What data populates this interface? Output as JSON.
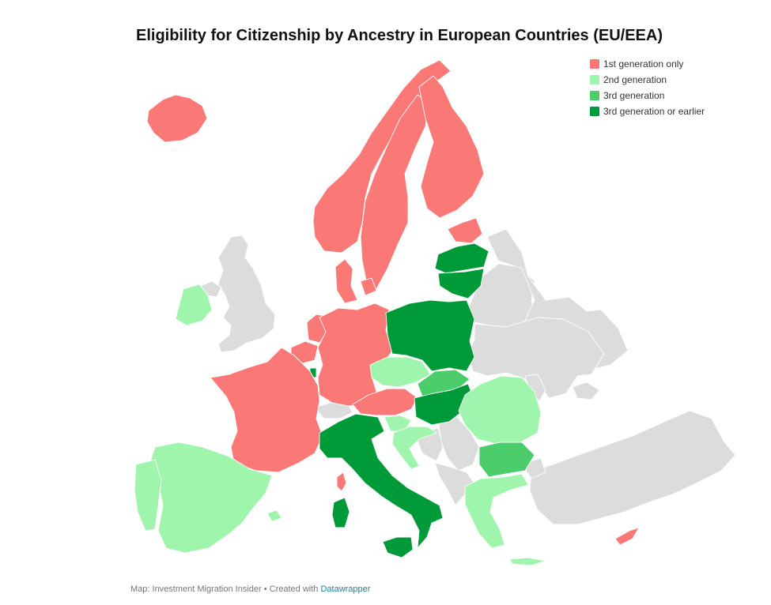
{
  "title": "Eligibility for Citizenship by Ancestry in European Countries (EU/EEA)",
  "legend": [
    {
      "label": "1st generation only",
      "color": "#fa7876"
    },
    {
      "label": "2nd generation",
      "color": "#9ff5ab"
    },
    {
      "label": "3rd generation",
      "color": "#4ccd6b"
    },
    {
      "label": "3rd generation or earlier",
      "color": "#009a39"
    }
  ],
  "no_data_color": "#dcdcdc",
  "footer": {
    "prefix": "Map: Investment Migration Insider • Created with",
    "link": "Datawrapper"
  }
}
